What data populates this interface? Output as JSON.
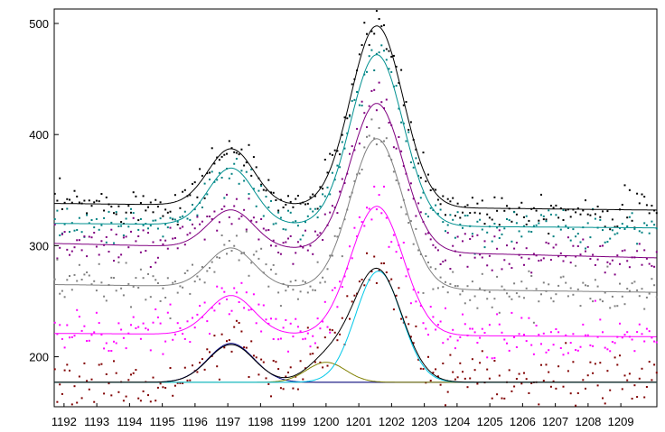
{
  "chart_data": {
    "type": "scatter",
    "x_ticks": [
      1192,
      1193,
      1194,
      1195,
      1196,
      1197,
      1198,
      1199,
      1200,
      1201,
      1202,
      1203,
      1204,
      1205,
      1206,
      1207,
      1208,
      1209
    ],
    "y_ticks": [
      200,
      300,
      400,
      500
    ],
    "xlim": [
      1191.7,
      1210.1
    ],
    "ylim": [
      155,
      513
    ],
    "grid": false,
    "fitted_curves": [
      {
        "color": "#000000",
        "baseline": 338,
        "baseline_end": 332,
        "peaks": [
          {
            "center": 1197.1,
            "height": 51,
            "width": 0.7
          },
          {
            "center": 1201.55,
            "height": 163,
            "width": 0.8
          }
        ]
      },
      {
        "color": "#009090",
        "baseline": 320,
        "baseline_end": 316,
        "peaks": [
          {
            "center": 1197.1,
            "height": 51,
            "width": 0.7
          },
          {
            "center": 1201.55,
            "height": 154,
            "width": 0.8
          }
        ]
      },
      {
        "color": "#800080",
        "baseline": 302,
        "baseline_end": 289,
        "peaks": [
          {
            "center": 1197.1,
            "height": 34,
            "width": 0.7
          },
          {
            "center": 1201.55,
            "height": 133,
            "width": 0.8
          }
        ]
      },
      {
        "color": "#808080",
        "baseline": 265,
        "baseline_end": 258,
        "peaks": [
          {
            "center": 1197.1,
            "height": 35,
            "width": 0.7
          },
          {
            "center": 1201.55,
            "height": 135,
            "width": 0.8
          }
        ]
      },
      {
        "color": "#ff00ff",
        "baseline": 221,
        "baseline_end": 218,
        "peaks": [
          {
            "center": 1197.1,
            "height": 35,
            "width": 0.7
          },
          {
            "center": 1201.55,
            "height": 116,
            "width": 0.8
          }
        ]
      },
      {
        "color": "#000000",
        "baseline": 177,
        "baseline_end": 177,
        "peaks": [
          {
            "center": 1197.1,
            "height": 34,
            "width": 0.7
          },
          {
            "center": 1200.0,
            "height": 18,
            "width": 0.6
          },
          {
            "center": 1201.55,
            "height": 102,
            "width": 0.75
          }
        ]
      }
    ],
    "component_curves": [
      {
        "color": "#000080",
        "baseline": 177,
        "center": 1197.1,
        "height": 35,
        "width": 0.7
      },
      {
        "color": "#808000",
        "baseline": 177,
        "center": 1200.0,
        "height": 18,
        "width": 0.6
      },
      {
        "color": "#00c8e8",
        "baseline": 177,
        "center": 1201.6,
        "height": 100,
        "width": 0.7
      }
    ],
    "baseline_line": {
      "color": "#808080",
      "y": 177
    },
    "scatter_series_colors": [
      "#000000",
      "#008080",
      "#800080",
      "#808080",
      "#ff00ff",
      "#800000"
    ],
    "scatter_noise_sd": [
      8,
      8,
      9,
      9,
      10,
      12
    ]
  }
}
